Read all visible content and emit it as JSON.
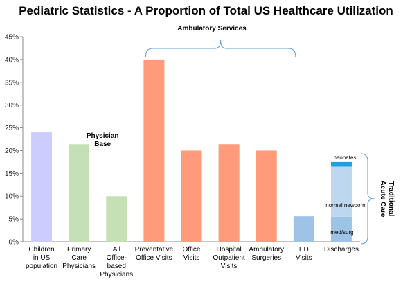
{
  "chart_data": {
    "type": "bar",
    "title": "Pediatric Statistics - A Proportion of Total US Healthcare Utilization",
    "xlabel": "",
    "ylabel": "",
    "ylim": [
      0,
      45
    ],
    "yticks": [
      "0%",
      "5%",
      "10%",
      "15%",
      "20%",
      "25%",
      "30%",
      "35%",
      "40%",
      "45%"
    ],
    "grid": false,
    "legend": "none",
    "categories": [
      [
        "Children",
        "in US",
        "population"
      ],
      [
        "Primary",
        "Care",
        "Physicians"
      ],
      [
        "All",
        "Office-",
        "based",
        "Physicians"
      ],
      [
        "Preventative",
        "Office Visits"
      ],
      [
        "Office",
        "Visits"
      ],
      [
        "Hospital",
        "Outpatient",
        "Visits"
      ],
      [
        "Ambulatory",
        "Surgeries"
      ],
      [
        "ED",
        "Visits"
      ],
      [
        "Discharges"
      ]
    ],
    "values": [
      24,
      21.4,
      10,
      40,
      20,
      21.4,
      20,
      5.6,
      17.5
    ],
    "colors": [
      "#ccccff",
      "#c5e0b4",
      "#c5e0b4",
      "#ff9a7a",
      "#ff9a7a",
      "#ff9a7a",
      "#ff9a7a",
      "#9dc3e6",
      "#bdd7ee"
    ],
    "stacked_segments": [
      {
        "label": "med/surg",
        "value": 5.5,
        "color": "#9dc3e6"
      },
      {
        "label": "normal newborn",
        "value": 11,
        "color": "#bdd7ee"
      },
      {
        "label": "neonates",
        "value": 1,
        "color": "#1ba1e2"
      }
    ],
    "annotations": {
      "physician_base": [
        "Physician",
        "Base"
      ],
      "ambulatory_services": "Ambulatory Services",
      "traditional_acute_care": [
        "Traditional",
        "Acute Care"
      ]
    }
  }
}
